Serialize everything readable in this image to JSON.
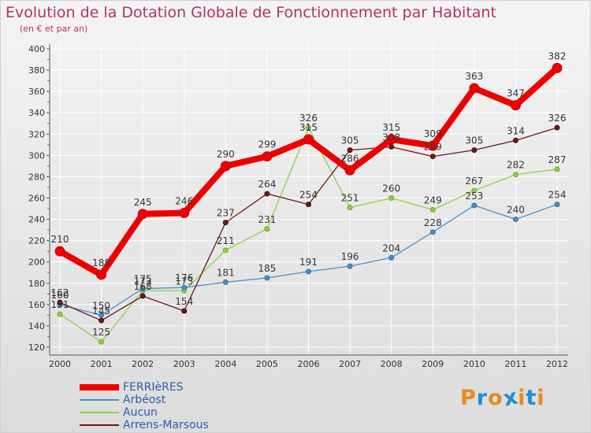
{
  "chart_data": {
    "type": "line",
    "title": "Evolution de la Dotation Globale de Fonctionnement par Habitant",
    "subtitle": "(en € et par an)",
    "xlabel": "",
    "ylabel": "",
    "x": [
      "2000",
      "2001",
      "2002",
      "2003",
      "2004",
      "2005",
      "2006",
      "2007",
      "2008",
      "2009",
      "2010",
      "2011",
      "2012"
    ],
    "ylim": [
      120,
      400
    ],
    "yticks": [
      120,
      140,
      160,
      180,
      200,
      220,
      240,
      260,
      280,
      300,
      320,
      340,
      360,
      380,
      400
    ],
    "grid": true,
    "legend_position": "bottom-left",
    "series": [
      {
        "name": "FERRIèRES",
        "color": "#ee0000",
        "values": [
          210,
          188,
          245,
          246,
          290,
          299,
          315,
          286,
          315,
          309,
          363,
          347,
          382
        ]
      },
      {
        "name": "Arbéost",
        "color": "#4a90c8",
        "values": [
          160,
          150,
          175,
          176,
          181,
          185,
          191,
          196,
          204,
          228,
          253,
          240,
          254
        ]
      },
      {
        "name": "Aucun",
        "color": "#8ecf4a",
        "values": [
          151,
          125,
          173,
          173,
          211,
          231,
          326,
          251,
          260,
          249,
          267,
          282,
          287
        ]
      },
      {
        "name": "Arrens-Marsous",
        "color": "#6b1a1a",
        "values": [
          162,
          145,
          168,
          154,
          237,
          264,
          254,
          305,
          308,
          299,
          305,
          314,
          326
        ]
      }
    ]
  },
  "logo": {
    "text": "Proxiti",
    "colors": [
      "#e8891c",
      "#1d8fd0",
      "#e8891c",
      "#1d8fd0",
      "#e8891c",
      "#1d8fd0",
      "#e8891c"
    ]
  }
}
